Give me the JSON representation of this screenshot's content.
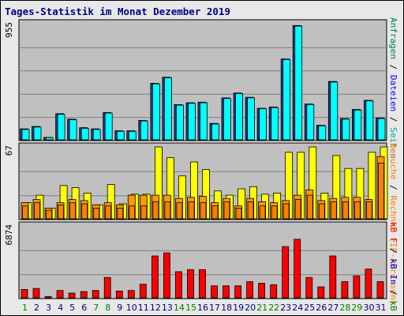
{
  "title": "Tages-Statistik im Monat Dezember 2019",
  "colors": {
    "hits": "#00ffff",
    "files": "#00ccff",
    "sites": "#ffff00",
    "visits": "#ff9900",
    "kbin": "#ff0000",
    "kbout": "#ff0000",
    "plot_bg": "#c0c0c0",
    "weekday_label": "#000080",
    "weekend_label": "#008000",
    "outline": "#000000"
  },
  "legend": {
    "top": [
      {
        "text": "Anfragen",
        "color": "#008040"
      },
      {
        "text": " / ",
        "color": "#000000"
      },
      {
        "text": "Dateien",
        "color": "#0000ff"
      },
      {
        "text": " / ",
        "color": "#000000"
      },
      {
        "text": "Seiten",
        "color": "#00a0a0"
      }
    ],
    "middle": [
      {
        "text": "Besuche",
        "color": "#ff8000"
      },
      {
        "text": " / ",
        "color": "#000000"
      },
      {
        "text": "Rechner (IP-Adressen)",
        "color": "#ff8000"
      }
    ],
    "bottom": [
      {
        "text": "kB F",
        "color": "#ff0000"
      },
      {
        "text": " / ",
        "color": "#000000"
      },
      {
        "text": "kB In",
        "color": "#0000ff"
      },
      {
        "text": " / ",
        "color": "#000000"
      },
      {
        "text": "kB Out",
        "color": "#008000"
      }
    ]
  },
  "chart_data": {
    "type": "bar",
    "categories": [
      "1",
      "2",
      "3",
      "4",
      "5",
      "6",
      "7",
      "8",
      "9",
      "10",
      "11",
      "12",
      "13",
      "14",
      "15",
      "16",
      "17",
      "18",
      "19",
      "20",
      "21",
      "22",
      "23",
      "24",
      "25",
      "26",
      "27",
      "28",
      "29",
      "30",
      "31"
    ],
    "weekend_days": [
      "1",
      "7",
      "8",
      "14",
      "15",
      "21",
      "22",
      "28",
      "29"
    ],
    "panels": [
      {
        "name": "hits",
        "ymax_label": "955",
        "ymax": 955,
        "series": [
          {
            "name": "Anfragen",
            "values": [
              90,
              110,
              20,
              215,
              170,
              100,
              90,
              225,
              75,
              75,
              160,
              465,
              515,
              290,
              305,
              310,
              135,
              345,
              385,
              350,
              260,
              270,
              665,
              940,
              295,
              120,
              480,
              175,
              250,
              325,
              180
            ]
          },
          {
            "name": "Dateien",
            "values": [
              85,
              105,
              18,
              210,
              165,
              95,
              85,
              220,
              70,
              70,
              155,
              460,
              510,
              285,
              300,
              305,
              130,
              340,
              380,
              345,
              255,
              265,
              660,
              935,
              290,
              115,
              475,
              170,
              245,
              320,
              175
            ]
          }
        ]
      },
      {
        "name": "sites",
        "ymax_label": "67",
        "ymax": 67,
        "series": [
          {
            "name": "Seiten",
            "values": [
              15,
              22,
              10,
              31,
              29,
              24,
              13,
              32,
              14,
              23,
              23,
              67,
              57,
              40,
              53,
              46,
              26,
              22,
              28,
              30,
              23,
              24,
              62,
              62,
              67,
              24,
              59,
              47,
              47,
              62,
              67
            ]
          },
          {
            "name": "Besuche",
            "values": [
              15,
              18,
              10,
              15,
              18,
              17,
              13,
              15,
              13,
              22,
              22,
              22,
              22,
              19,
              20,
              21,
              15,
              19,
              12,
              19,
              16,
              15,
              17,
              22,
              27,
              17,
              19,
              20,
              20,
              18,
              58
            ]
          },
          {
            "name": "Rechner (IP-Adressen)",
            "values": [
              12,
              15,
              8,
              13,
              15,
              14,
              10,
              12,
              10,
              12,
              12,
              16,
              16,
              15,
              16,
              15,
              12,
              16,
              10,
              16,
              12,
              12,
              14,
              18,
              22,
              14,
              16,
              16,
              16,
              16,
              52
            ]
          }
        ]
      },
      {
        "name": "kbytes",
        "ymax_label": "6874",
        "ymax": 6874,
        "series": [
          {
            "name": "kB F",
            "values": [
              800,
              900,
              120,
              700,
              450,
              600,
              700,
              1950,
              650,
              700,
              1300,
              4000,
              4300,
              2500,
              2700,
              2700,
              1150,
              1150,
              1150,
              1550,
              1400,
              1250,
              4900,
              5600,
              1950,
              1050,
              4000,
              1550,
              2100,
              2750,
              1550
            ]
          }
        ]
      }
    ]
  }
}
